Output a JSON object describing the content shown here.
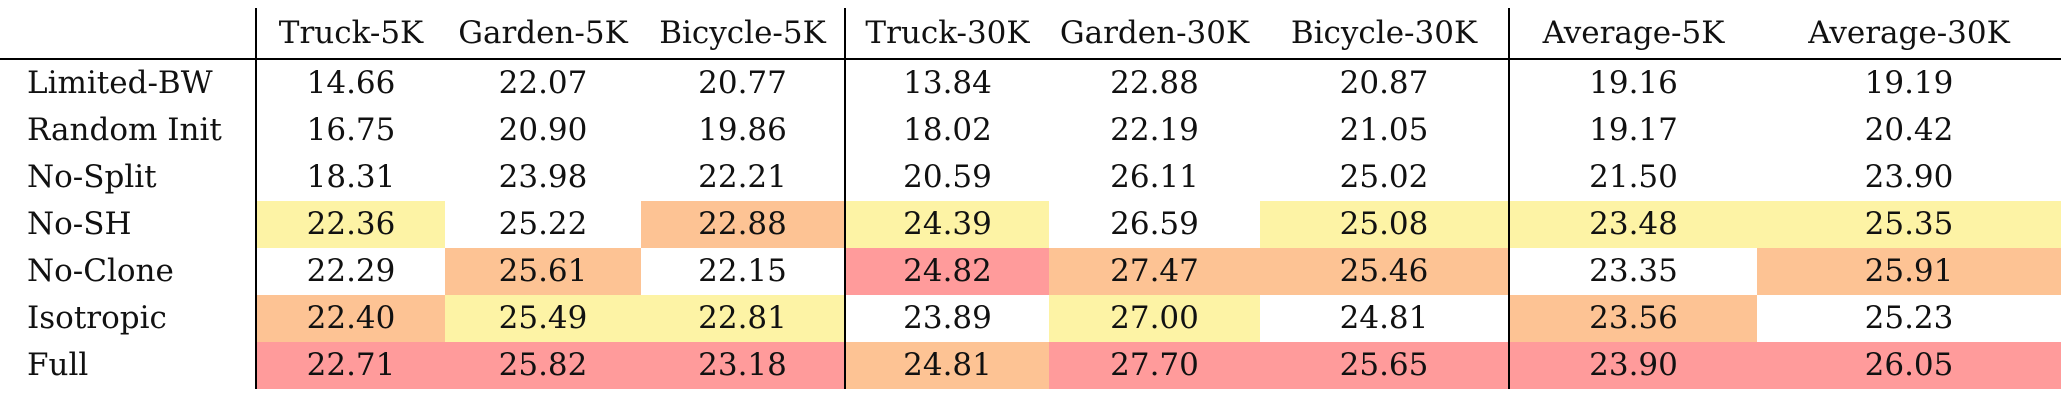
{
  "columns": [
    "Truck-5K",
    "Garden-5K",
    "Bicycle-5K",
    "Truck-30K",
    "Garden-30K",
    "Bicycle-30K",
    "Average-5K",
    "Average-30K"
  ],
  "highlight_colors": {
    "best": "#ff9b9b",
    "second": "#fdc394",
    "third": "#fdf3a5"
  },
  "rows": [
    {
      "label": "Limited-BW",
      "values": [
        "14.66",
        "22.07",
        "20.77",
        "13.84",
        "22.88",
        "20.87",
        "19.16",
        "19.19"
      ]
    },
    {
      "label": "Random Init",
      "values": [
        "16.75",
        "20.90",
        "19.86",
        "18.02",
        "22.19",
        "21.05",
        "19.17",
        "20.42"
      ]
    },
    {
      "label": "No-Split",
      "values": [
        "18.31",
        "23.98",
        "22.21",
        "20.59",
        "26.11",
        "25.02",
        "21.50",
        "23.90"
      ]
    },
    {
      "label": "No-SH",
      "values": [
        "22.36",
        "25.22",
        "22.88",
        "24.39",
        "26.59",
        "25.08",
        "23.48",
        "25.35"
      ]
    },
    {
      "label": "No-Clone",
      "values": [
        "22.29",
        "25.61",
        "22.15",
        "24.82",
        "27.47",
        "25.46",
        "23.35",
        "25.91"
      ]
    },
    {
      "label": "Isotropic",
      "values": [
        "22.40",
        "25.49",
        "22.81",
        "23.89",
        "27.00",
        "24.81",
        "23.56",
        "25.23"
      ]
    },
    {
      "label": "Full",
      "values": [
        "22.71",
        "25.82",
        "23.18",
        "24.81",
        "27.70",
        "25.65",
        "23.90",
        "26.05"
      ]
    }
  ]
}
